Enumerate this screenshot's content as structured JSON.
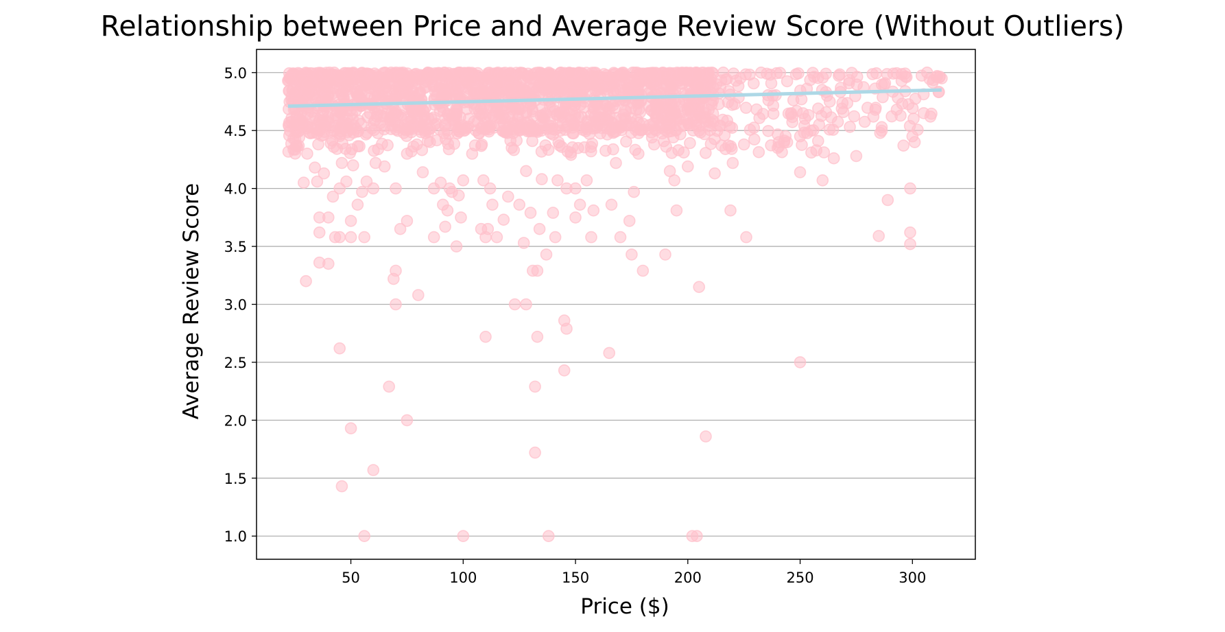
{
  "chart_data": {
    "type": "scatter",
    "title": "Relationship between Price and Average Review Score (Without Outliers)",
    "xlabel": "Price ($)",
    "ylabel": "Average Review Score",
    "xlim": [
      8,
      328
    ],
    "ylim": [
      0.8,
      5.2
    ],
    "xticks": [
      50,
      100,
      150,
      200,
      250,
      300
    ],
    "yticks": [
      1.0,
      1.5,
      2.0,
      2.5,
      3.0,
      3.5,
      4.0,
      4.5,
      5.0
    ],
    "grid": "y-major",
    "legend": "none",
    "colors": {
      "points": "#ffc0cb",
      "regression_line": "#add8e6"
    },
    "regression_line": {
      "x": [
        22,
        313
      ],
      "y": [
        4.71,
        4.85
      ]
    },
    "dense_band": {
      "x_range": [
        22,
        313
      ],
      "y_range": [
        4.5,
        5.0
      ]
    },
    "series": [
      {
        "points": [
          [
            22,
            4.93
          ],
          [
            25,
            4.56
          ],
          [
            27,
            4.44
          ],
          [
            28,
            4.58
          ],
          [
            29,
            4.05
          ],
          [
            30,
            3.2
          ],
          [
            31,
            4.9
          ],
          [
            33,
            4.48
          ],
          [
            34,
            4.18
          ],
          [
            35,
            4.06
          ],
          [
            36,
            3.36
          ],
          [
            36,
            3.62
          ],
          [
            36,
            3.75
          ],
          [
            38,
            4.13
          ],
          [
            40,
            3.35
          ],
          [
            40,
            3.75
          ],
          [
            41,
            4.39
          ],
          [
            42,
            3.93
          ],
          [
            43,
            3.58
          ],
          [
            45,
            2.62
          ],
          [
            45,
            3.58
          ],
          [
            45,
            4.0
          ],
          [
            46,
            1.43
          ],
          [
            46,
            4.22
          ],
          [
            48,
            4.06
          ],
          [
            50,
            1.93
          ],
          [
            50,
            3.58
          ],
          [
            50,
            3.72
          ],
          [
            51,
            4.2
          ],
          [
            53,
            3.86
          ],
          [
            55,
            3.97
          ],
          [
            56,
            1.0
          ],
          [
            56,
            3.58
          ],
          [
            57,
            4.06
          ],
          [
            60,
            1.57
          ],
          [
            60,
            4.0
          ],
          [
            61,
            4.22
          ],
          [
            65,
            4.19
          ],
          [
            67,
            2.29
          ],
          [
            69,
            3.22
          ],
          [
            70,
            3.0
          ],
          [
            70,
            3.29
          ],
          [
            70,
            4.0
          ],
          [
            72,
            3.65
          ],
          [
            75,
            2.0
          ],
          [
            75,
            3.72
          ],
          [
            75,
            4.3
          ],
          [
            80,
            3.08
          ],
          [
            82,
            4.14
          ],
          [
            87,
            3.58
          ],
          [
            87,
            4.0
          ],
          [
            90,
            4.05
          ],
          [
            91,
            3.86
          ],
          [
            92,
            3.67
          ],
          [
            93,
            3.81
          ],
          [
            94,
            4.0
          ],
          [
            95,
            3.97
          ],
          [
            97,
            3.5
          ],
          [
            98,
            3.94
          ],
          [
            99,
            3.75
          ],
          [
            100,
            1.0
          ],
          [
            100,
            4.07
          ],
          [
            104,
            4.3
          ],
          [
            108,
            3.65
          ],
          [
            109,
            4.07
          ],
          [
            110,
            2.72
          ],
          [
            110,
            3.58
          ],
          [
            111,
            3.65
          ],
          [
            112,
            4.0
          ],
          [
            113,
            3.86
          ],
          [
            115,
            3.58
          ],
          [
            118,
            3.73
          ],
          [
            120,
            3.93
          ],
          [
            123,
            3.0
          ],
          [
            125,
            3.86
          ],
          [
            127,
            3.53
          ],
          [
            128,
            3.0
          ],
          [
            128,
            4.15
          ],
          [
            130,
            3.79
          ],
          [
            131,
            3.29
          ],
          [
            132,
            1.72
          ],
          [
            132,
            2.29
          ],
          [
            133,
            2.72
          ],
          [
            133,
            3.29
          ],
          [
            134,
            3.65
          ],
          [
            135,
            4.08
          ],
          [
            137,
            3.43
          ],
          [
            138,
            1.0
          ],
          [
            140,
            3.79
          ],
          [
            141,
            3.58
          ],
          [
            142,
            4.07
          ],
          [
            145,
            2.43
          ],
          [
            145,
            2.86
          ],
          [
            146,
            2.79
          ],
          [
            146,
            4.0
          ],
          [
            148,
            4.29
          ],
          [
            150,
            3.75
          ],
          [
            150,
            4.0
          ],
          [
            152,
            3.86
          ],
          [
            155,
            4.07
          ],
          [
            157,
            3.58
          ],
          [
            158,
            3.81
          ],
          [
            165,
            2.58
          ],
          [
            166,
            3.86
          ],
          [
            168,
            4.22
          ],
          [
            170,
            3.58
          ],
          [
            174,
            3.72
          ],
          [
            175,
            3.43
          ],
          [
            176,
            3.97
          ],
          [
            178,
            4.3
          ],
          [
            180,
            3.29
          ],
          [
            185,
            4.38
          ],
          [
            190,
            3.43
          ],
          [
            192,
            4.15
          ],
          [
            194,
            4.07
          ],
          [
            195,
            3.81
          ],
          [
            200,
            4.19
          ],
          [
            202,
            1.0
          ],
          [
            204,
            1.0
          ],
          [
            205,
            3.15
          ],
          [
            208,
            1.86
          ],
          [
            212,
            4.13
          ],
          [
            215,
            4.37
          ],
          [
            219,
            3.81
          ],
          [
            220,
            4.22
          ],
          [
            225,
            4.38
          ],
          [
            226,
            3.58
          ],
          [
            240,
            4.35
          ],
          [
            250,
            2.5
          ],
          [
            250,
            4.14
          ],
          [
            255,
            4.31
          ],
          [
            258,
            4.41
          ],
          [
            260,
            4.07
          ],
          [
            265,
            4.26
          ],
          [
            275,
            4.28
          ],
          [
            285,
            3.59
          ],
          [
            289,
            3.9
          ],
          [
            293,
            4.68
          ],
          [
            296,
            4.37
          ],
          [
            299,
            3.52
          ],
          [
            299,
            3.62
          ],
          [
            299,
            4.0
          ],
          [
            300,
            4.45
          ],
          [
            301,
            4.4
          ],
          [
            305,
            4.65
          ],
          [
            308,
            4.62
          ],
          [
            311,
            4.97
          ],
          [
            313,
            4.95
          ]
        ]
      }
    ]
  }
}
